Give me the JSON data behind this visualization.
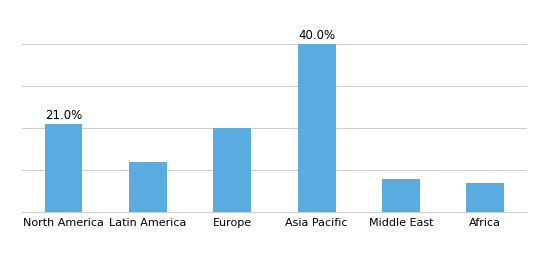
{
  "categories": [
    "North America",
    "Latin America",
    "Europe",
    "Asia Pacific",
    "Middle East",
    "Africa"
  ],
  "values": [
    21.0,
    12.0,
    20.0,
    40.0,
    8.0,
    7.0
  ],
  "bar_color": "#5aabe0",
  "labeled_bars": [
    0,
    3
  ],
  "labels": [
    "21.0%",
    "40.0%"
  ],
  "ylim": [
    0,
    46
  ],
  "ytick_interval": 10,
  "bar_width": 0.45,
  "grid_color": "#cccccc",
  "background_color": "#ffffff",
  "label_fontsize": 8.5,
  "tick_fontsize": 8,
  "source_fontsize": 7.5
}
